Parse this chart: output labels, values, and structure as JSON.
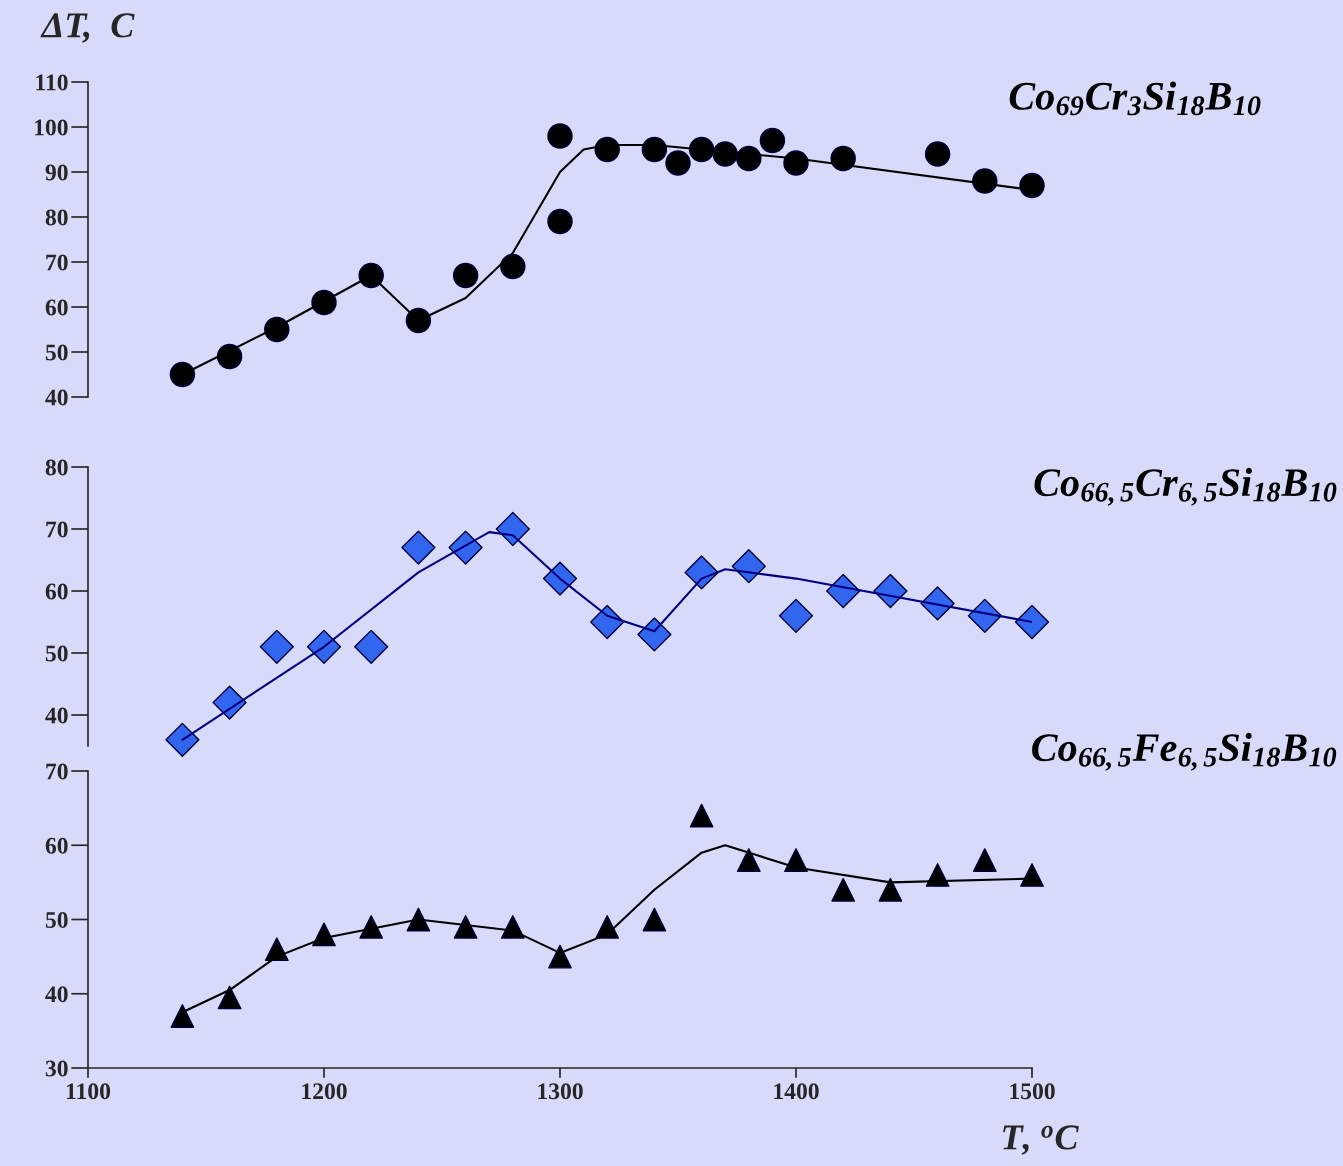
{
  "chart_data": [
    {
      "type": "scatter",
      "ylabel": "ΔT,  C",
      "xlim": [
        1100,
        1500
      ],
      "xticks": [
        1100,
        1200,
        1300,
        1400,
        1500
      ],
      "ylim": [
        40,
        110
      ],
      "yticks": [
        40,
        50,
        60,
        70,
        80,
        90,
        100,
        110
      ],
      "tick_labels": "y",
      "x": [
        1140,
        1160,
        1180,
        1200,
        1220,
        1240,
        1260,
        1280,
        1300,
        1300,
        1320,
        1340,
        1350,
        1360,
        1370,
        1380,
        1390,
        1400,
        1420,
        1460,
        1480,
        1500
      ],
      "series": [
        {
          "name": "Co$_{69}$Cr$_{3}$Si$_{18}$B$_{10}$",
          "marker": "circle",
          "color": "#000000",
          "values": [
            45,
            49,
            55,
            61,
            67,
            57,
            67,
            69,
            98,
            79,
            95,
            95,
            92,
            95,
            94,
            93,
            97,
            92,
            93,
            94,
            88,
            87
          ]
        },
        {
          "type": "line",
          "color": "#000000",
          "x": [
            1140,
            1180,
            1220,
            1240,
            1260,
            1280,
            1300,
            1310,
            1320,
            1340,
            1400,
            1500
          ],
          "values": [
            45,
            55.5,
            67,
            57,
            62,
            72,
            90,
            95,
            96,
            96,
            93,
            86
          ]
        }
      ]
    },
    {
      "type": "scatter",
      "xlim": [
        1100,
        1500
      ],
      "xticks": [
        1100,
        1200,
        1300,
        1400,
        1500
      ],
      "ylim": [
        35,
        80
      ],
      "yticks": [
        40,
        50,
        60,
        70,
        80
      ],
      "tick_labels": "y",
      "x": [
        1140,
        1160,
        1180,
        1200,
        1220,
        1240,
        1260,
        1280,
        1300,
        1320,
        1340,
        1360,
        1380,
        1400,
        1420,
        1440,
        1460,
        1480,
        1500
      ],
      "series": [
        {
          "name": "Co$_{66,5}$Cr$_{6,5}$Si$_{18}$B$_{10}$",
          "marker": "diamond",
          "color": "#3366ee",
          "values": [
            36,
            42,
            51,
            51,
            51,
            67,
            67,
            70,
            62,
            55,
            53,
            63,
            64,
            56,
            60,
            60,
            58,
            56,
            55
          ]
        },
        {
          "type": "line",
          "color": "#000080",
          "x": [
            1140,
            1200,
            1240,
            1270,
            1280,
            1300,
            1320,
            1340,
            1360,
            1370,
            1400,
            1500
          ],
          "values": [
            36,
            51,
            63,
            69.5,
            69,
            62,
            56,
            53.5,
            62,
            63.5,
            62,
            55
          ]
        }
      ]
    },
    {
      "type": "scatter",
      "xlabel": "T, $^{o}$C",
      "xlim": [
        1100,
        1500
      ],
      "xticks": [
        1100,
        1200,
        1300,
        1400,
        1500
      ],
      "ylim": [
        30,
        70
      ],
      "yticks": [
        30,
        40,
        50,
        60,
        70
      ],
      "x": [
        1140,
        1160,
        1180,
        1200,
        1220,
        1240,
        1260,
        1280,
        1300,
        1320,
        1340,
        1360,
        1380,
        1400,
        1420,
        1440,
        1460,
        1480,
        1500
      ],
      "series": [
        {
          "name": "Co$_{66,5}$Fe$_{6,5}$Si$_{18}$B$_{10}$",
          "marker": "triangle",
          "color": "#000000",
          "values": [
            37,
            39.5,
            46,
            48,
            49,
            50,
            49,
            49,
            45,
            49,
            50,
            64,
            58,
            58,
            54,
            54,
            56,
            58,
            56
          ]
        },
        {
          "type": "line",
          "color": "#000000",
          "x": [
            1140,
            1160,
            1180,
            1200,
            1240,
            1280,
            1300,
            1320,
            1340,
            1360,
            1370,
            1400,
            1440,
            1500
          ],
          "values": [
            37.5,
            40.5,
            45,
            47.5,
            50,
            48.5,
            45.5,
            48,
            54,
            59,
            60,
            57,
            55,
            55.5
          ]
        }
      ]
    }
  ]
}
